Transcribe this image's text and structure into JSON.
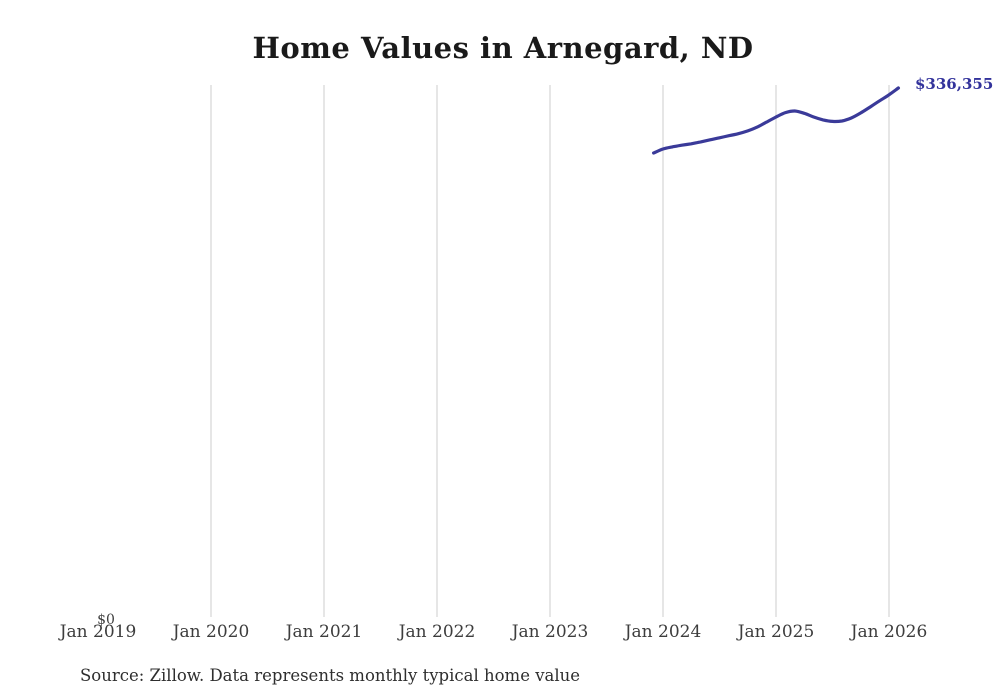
{
  "title": "Home Values in Arnegard, ND",
  "source_note": "Source: Zillow. Data represents monthly typical home value",
  "colors": {
    "background": "#ffffff",
    "line": "#3a3a99",
    "end_label": "#32329b",
    "gridline": "#cccccc",
    "title": "#1a1a1a",
    "tick_label": "#3d3d3d",
    "source": "#2e2e2e"
  },
  "chart_data": {
    "type": "line",
    "title": "Home Values in Arnegard, ND",
    "x_tick_labels": [
      "Jan 2019",
      "Jan 2020",
      "Jan 2021",
      "Jan 2022",
      "Jan 2023",
      "Jan 2024",
      "Jan 2025",
      "Jan 2026"
    ],
    "y_axis": {
      "min_label": "$0",
      "min": 0,
      "ticks_shown": [
        "$0"
      ]
    },
    "grid": "vertical-only",
    "legend": "none",
    "end_annotation": "$336,355",
    "series": [
      {
        "name": "Monthly typical home value",
        "x": [
          "Dec 2023",
          "Jan 2024",
          "Feb 2024",
          "Mar 2024",
          "Apr 2024",
          "May 2024",
          "Jun 2024",
          "Jul 2024",
          "Aug 2024",
          "Sep 2024",
          "Oct 2024",
          "Nov 2024",
          "Dec 2024",
          "Jan 2025",
          "Feb 2025",
          "Mar 2025",
          "Apr 2025",
          "May 2025",
          "Jun 2025",
          "Jul 2025",
          "Aug 2025",
          "Sep 2025",
          "Oct 2025",
          "Nov 2025",
          "Dec 2025",
          "Jan 2026",
          "Feb 2026"
        ],
        "values": [
          295000,
          297600,
          298900,
          300000,
          300900,
          302100,
          303400,
          304700,
          306000,
          307300,
          309100,
          311500,
          314700,
          317900,
          320700,
          321700,
          320300,
          317900,
          316100,
          315100,
          315400,
          317300,
          320500,
          324300,
          328200,
          332000,
          336355
        ]
      }
    ]
  }
}
